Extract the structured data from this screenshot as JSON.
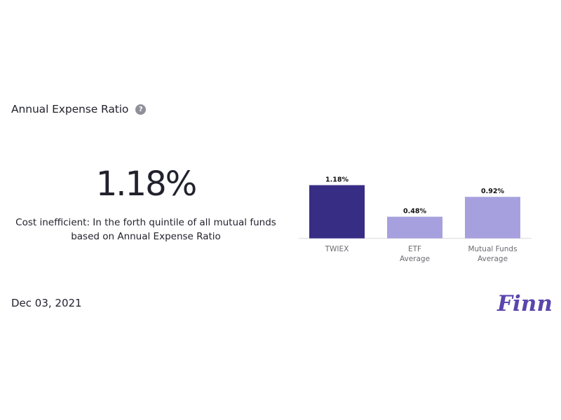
{
  "header": {
    "title": "Annual Expense Ratio",
    "help_icon": "question-mark-icon",
    "help_symbol": "?"
  },
  "summary": {
    "value": "1.18%",
    "description_line1": "Cost inefficient: In the forth quintile of all mutual funds",
    "description_line2": "based on Annual Expense Ratio"
  },
  "chart_data": {
    "type": "bar",
    "categories": [
      [
        "TWIEX"
      ],
      [
        "ETF",
        "Average"
      ],
      [
        "Mutual Funds",
        "Average"
      ]
    ],
    "values": [
      1.18,
      0.48,
      0.92
    ],
    "value_labels": [
      "1.18%",
      "0.48%",
      "0.92%"
    ],
    "ylim": [
      0,
      1.18
    ],
    "grid": false,
    "colors": [
      "#372d85",
      "#a6a1de",
      "#a6a1de"
    ],
    "baseline_color": "#e6e6ea"
  },
  "footer": {
    "date": "Dec 03, 2021",
    "logo_text": "Finny",
    "logo_color": "#5b45ad"
  }
}
